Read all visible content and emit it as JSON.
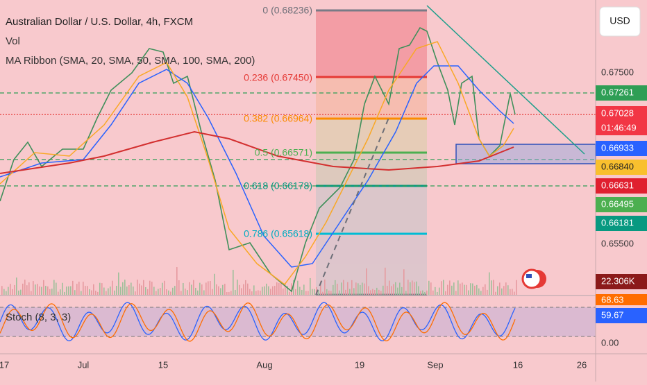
{
  "header": {
    "title": "Australian Dollar / U.S. Dollar, 4h, FXCM",
    "indicators": [
      "Vol",
      "MA Ribbon (SMA, 20, SMA, 50, SMA, 100, SMA, 200)"
    ]
  },
  "currency_button": "USD",
  "fib_levels": [
    "0 (0.68236)",
    "0.236 (0.67450)",
    "0.382 (0.66964)",
    "0.5 (0.66571)",
    "0.618 (0.66178)",
    "0.786 (0.65618)"
  ],
  "price_axis": [
    "0.67500",
    "0.65500"
  ],
  "price_badges": [
    "0.67261",
    "0.67028",
    "0.66933",
    "0.66840",
    "0.66631",
    "0.66495",
    "0.66181"
  ],
  "countdown": "01:46:49",
  "volume_badge": "22.306K",
  "stoch": {
    "label": "Stoch (8, 3, 3)",
    "values": [
      "68.63",
      "59.67"
    ],
    "axis": "0.00"
  },
  "date_axis": [
    "17",
    "Jul",
    "15",
    "Aug",
    "19",
    "Sep",
    "16",
    "26"
  ]
}
